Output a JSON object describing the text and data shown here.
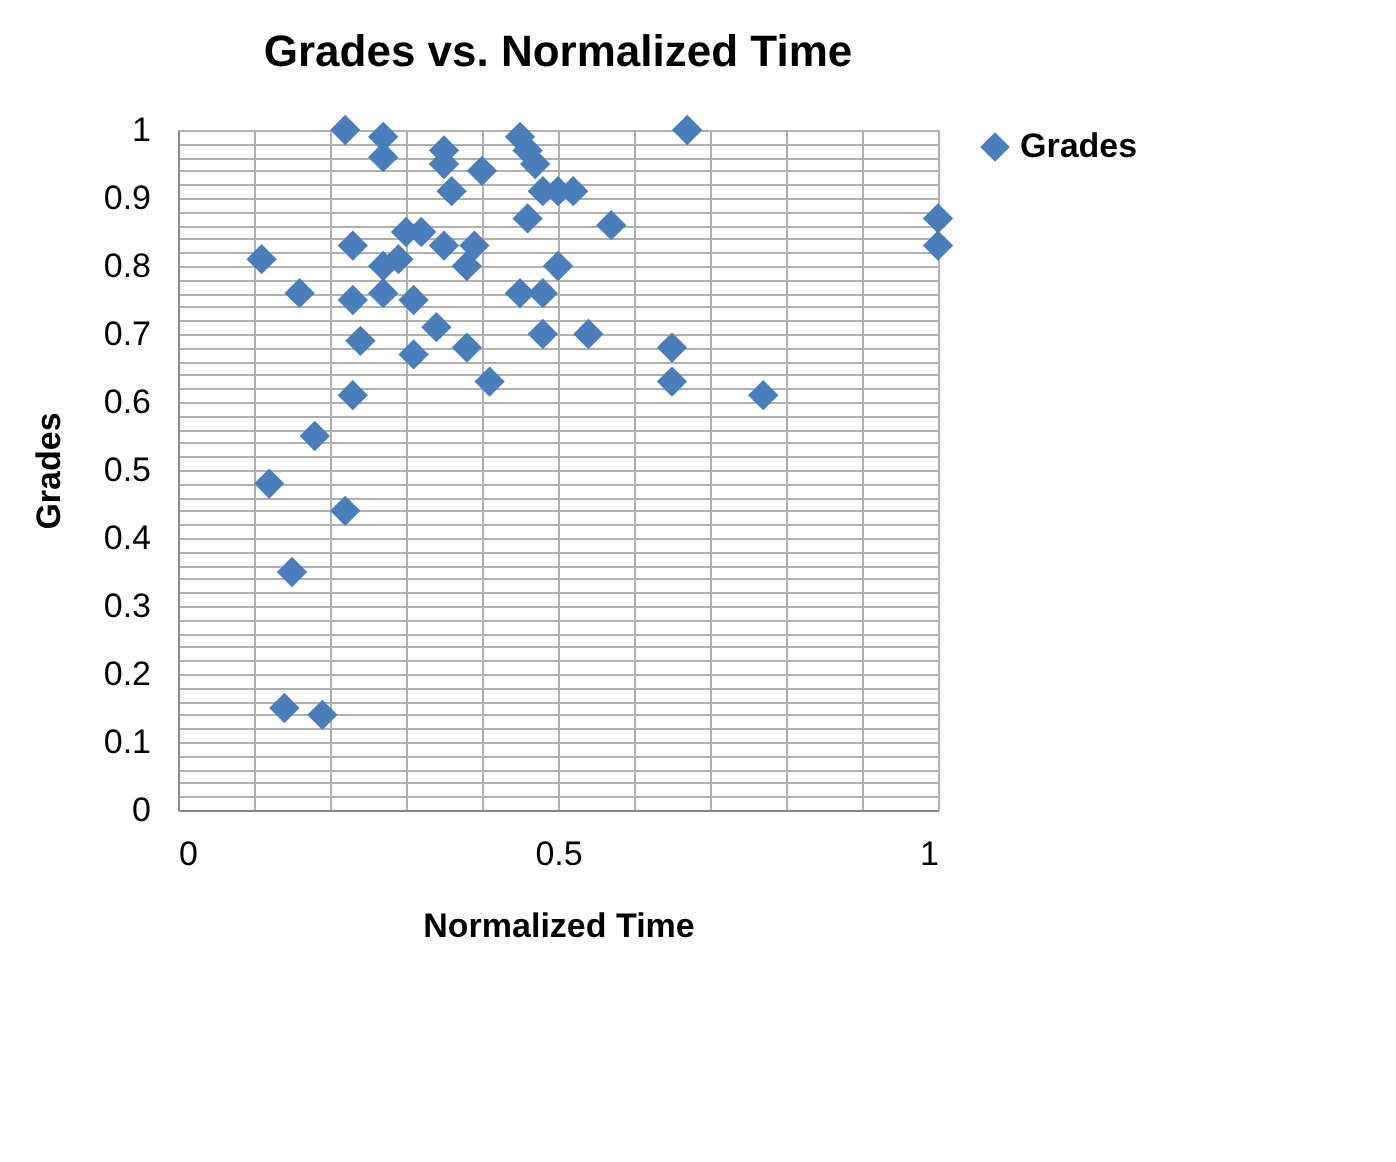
{
  "chart_data": {
    "type": "scatter",
    "title": "Grades vs. Normalized Time",
    "xlabel": "Normalized Time",
    "ylabel": "Grades",
    "xlim": [
      0,
      1
    ],
    "ylim": [
      0,
      1
    ],
    "xticks": [
      0,
      {
        "value": 0.1,
        "label": null
      },
      {
        "value": 0.2,
        "label": null
      },
      {
        "value": 0.3,
        "label": null
      },
      {
        "value": 0.4,
        "label": null
      },
      0.5,
      {
        "value": 0.6,
        "label": null
      },
      {
        "value": 0.7,
        "label": null
      },
      {
        "value": 0.8,
        "label": null
      },
      {
        "value": 0.9,
        "label": null
      },
      1
    ],
    "yticks": [
      0,
      {
        "value": 0.02,
        "label": null
      },
      {
        "value": 0.04,
        "label": null
      },
      {
        "value": 0.06,
        "label": null
      },
      {
        "value": 0.08,
        "label": null
      },
      0.1,
      {
        "value": 0.12,
        "label": null
      },
      {
        "value": 0.14,
        "label": null
      },
      {
        "value": 0.16,
        "label": null
      },
      {
        "value": 0.18,
        "label": null
      },
      0.2,
      {
        "value": 0.22,
        "label": null
      },
      {
        "value": 0.24,
        "label": null
      },
      {
        "value": 0.26,
        "label": null
      },
      {
        "value": 0.28,
        "label": null
      },
      0.3,
      {
        "value": 0.32,
        "label": null
      },
      {
        "value": 0.34,
        "label": null
      },
      {
        "value": 0.36,
        "label": null
      },
      {
        "value": 0.38,
        "label": null
      },
      0.4,
      {
        "value": 0.42,
        "label": null
      },
      {
        "value": 0.44,
        "label": null
      },
      {
        "value": 0.46,
        "label": null
      },
      {
        "value": 0.48,
        "label": null
      },
      0.5,
      {
        "value": 0.52,
        "label": null
      },
      {
        "value": 0.54,
        "label": null
      },
      {
        "value": 0.56,
        "label": null
      },
      {
        "value": 0.58,
        "label": null
      },
      0.6,
      {
        "value": 0.62,
        "label": null
      },
      {
        "value": 0.64,
        "label": null
      },
      {
        "value": 0.66,
        "label": null
      },
      {
        "value": 0.68,
        "label": null
      },
      0.7,
      {
        "value": 0.72,
        "label": null
      },
      {
        "value": 0.74,
        "label": null
      },
      {
        "value": 0.76,
        "label": null
      },
      {
        "value": 0.78,
        "label": null
      },
      0.8,
      {
        "value": 0.82,
        "label": null
      },
      {
        "value": 0.84,
        "label": null
      },
      {
        "value": 0.86,
        "label": null
      },
      {
        "value": 0.88,
        "label": null
      },
      0.9,
      {
        "value": 0.92,
        "label": null
      },
      {
        "value": 0.94,
        "label": null
      },
      {
        "value": 0.96,
        "label": null
      },
      {
        "value": 0.98,
        "label": null
      },
      1
    ],
    "grid": true,
    "legend": "right",
    "marker": "diamond",
    "series": [
      {
        "name": "Grades",
        "color": "#4a7ebb",
        "x": [
          0.22,
          0.27,
          0.27,
          0.35,
          0.35,
          0.36,
          0.4,
          0.45,
          0.47,
          0.48,
          0.46,
          0.11,
          0.23,
          0.3,
          0.32,
          0.35,
          0.39,
          0.27,
          0.29,
          0.38,
          0.16,
          0.23,
          0.27,
          0.31,
          0.34,
          0.24,
          0.31,
          0.38,
          0.45,
          0.41,
          0.23,
          0.18,
          0.67,
          1.0,
          1.0,
          0.57,
          0.5,
          0.48,
          0.48,
          0.54,
          0.65,
          0.65,
          0.77,
          0.46,
          0.52,
          0.5,
          0.12,
          0.22,
          0.15,
          0.14,
          0.19
        ],
        "values": [
          1.0,
          0.99,
          0.96,
          0.97,
          0.95,
          0.91,
          0.94,
          0.99,
          0.95,
          0.91,
          0.87,
          0.81,
          0.83,
          0.85,
          0.85,
          0.83,
          0.83,
          0.8,
          0.81,
          0.8,
          0.76,
          0.75,
          0.76,
          0.75,
          0.71,
          0.69,
          0.67,
          0.68,
          0.76,
          0.63,
          0.61,
          0.55,
          1.0,
          0.87,
          0.83,
          0.86,
          0.8,
          0.76,
          0.7,
          0.7,
          0.68,
          0.63,
          0.61,
          0.97,
          0.91,
          0.91,
          0.48,
          0.44,
          0.35,
          0.15,
          0.14
        ]
      }
    ]
  }
}
